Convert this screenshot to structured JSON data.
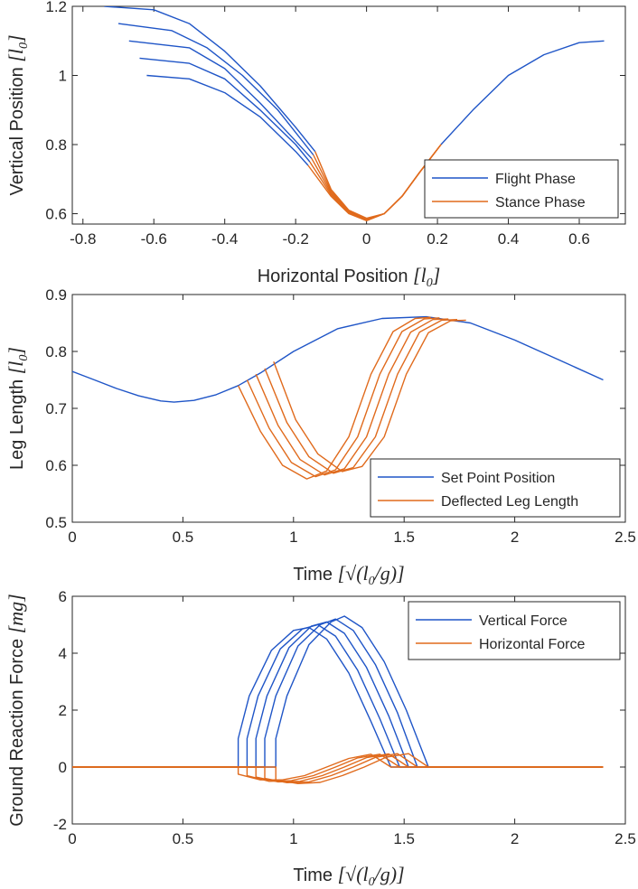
{
  "colors": {
    "blue": "#1f55c7",
    "orange": "#e06a1c",
    "axis": "#262626"
  },
  "chart_data": [
    {
      "type": "line",
      "xlabel": "Horizontal Position",
      "xlabel_unit": "l_0",
      "ylabel": "Vertical Position",
      "ylabel_unit": "l_0",
      "xlim": [
        -0.83,
        0.73
      ],
      "ylim": [
        0.57,
        1.2
      ],
      "xticks": [
        "-0.8",
        "-0.6",
        "-0.4",
        "-0.2",
        "0",
        "0.2",
        "0.4",
        "0.6"
      ],
      "xtick_values": [
        -0.8,
        -0.6,
        -0.4,
        -0.2,
        0,
        0.2,
        0.4,
        0.6
      ],
      "yticks": [
        "0.6",
        "0.8",
        "1",
        "1.2"
      ],
      "ytick_values": [
        0.6,
        0.8,
        1.0,
        1.2
      ],
      "legend": {
        "location": "bottom-right",
        "entries": [
          "Flight Phase",
          "Stance Phase"
        ]
      },
      "series": [
        {
          "name": "Flight Phase",
          "color": "blue",
          "x": [
            0.21,
            0.3,
            0.4,
            0.5,
            0.6,
            0.67
          ],
          "y": [
            0.8,
            0.9,
            1.0,
            1.06,
            1.095,
            1.1
          ]
        },
        {
          "name": "Flight Phase",
          "color": "blue",
          "x": [
            -0.62,
            -0.5,
            -0.4,
            -0.3,
            -0.2,
            -0.165
          ],
          "y": [
            1.0,
            0.99,
            0.95,
            0.88,
            0.78,
            0.74
          ]
        },
        {
          "name": "Flight Phase",
          "color": "blue",
          "x": [
            -0.64,
            -0.5,
            -0.4,
            -0.3,
            -0.2,
            -0.16
          ],
          "y": [
            1.05,
            1.035,
            0.99,
            0.9,
            0.8,
            0.75
          ]
        },
        {
          "name": "Flight Phase",
          "color": "blue",
          "x": [
            -0.67,
            -0.5,
            -0.4,
            -0.3,
            -0.2,
            -0.155
          ],
          "y": [
            1.1,
            1.08,
            1.02,
            0.92,
            0.81,
            0.76
          ]
        },
        {
          "name": "Flight Phase",
          "color": "blue",
          "x": [
            -0.7,
            -0.55,
            -0.45,
            -0.35,
            -0.25,
            -0.15
          ],
          "y": [
            1.15,
            1.13,
            1.08,
            1.0,
            0.9,
            0.77
          ]
        },
        {
          "name": "Flight Phase",
          "color": "blue",
          "x": [
            -0.74,
            -0.6,
            -0.5,
            -0.4,
            -0.3,
            -0.2,
            -0.145
          ],
          "y": [
            1.2,
            1.19,
            1.15,
            1.07,
            0.97,
            0.85,
            0.78
          ]
        },
        {
          "name": "Stance Phase",
          "color": "orange",
          "x": [
            -0.165,
            -0.1,
            -0.05,
            0.0,
            0.05,
            0.1,
            0.15,
            0.21
          ],
          "y": [
            0.74,
            0.65,
            0.6,
            0.58,
            0.6,
            0.65,
            0.72,
            0.8
          ]
        },
        {
          "name": "Stance Phase",
          "color": "orange",
          "x": [
            -0.16,
            -0.1,
            -0.05,
            0.0,
            0.05,
            0.1,
            0.15,
            0.21
          ],
          "y": [
            0.75,
            0.655,
            0.602,
            0.58,
            0.6,
            0.65,
            0.72,
            0.8
          ]
        },
        {
          "name": "Stance Phase",
          "color": "orange",
          "x": [
            -0.155,
            -0.1,
            -0.05,
            0.0,
            0.05,
            0.1,
            0.15,
            0.21
          ],
          "y": [
            0.76,
            0.66,
            0.605,
            0.582,
            0.6,
            0.65,
            0.72,
            0.8
          ]
        },
        {
          "name": "Stance Phase",
          "color": "orange",
          "x": [
            -0.15,
            -0.1,
            -0.05,
            0.0,
            0.05,
            0.1,
            0.15,
            0.21
          ],
          "y": [
            0.77,
            0.665,
            0.608,
            0.585,
            0.6,
            0.65,
            0.72,
            0.8
          ]
        },
        {
          "name": "Stance Phase",
          "color": "orange",
          "x": [
            -0.145,
            -0.1,
            -0.05,
            0.0,
            0.05,
            0.1,
            0.15,
            0.21
          ],
          "y": [
            0.78,
            0.67,
            0.61,
            0.587,
            0.6,
            0.65,
            0.72,
            0.8
          ]
        }
      ]
    },
    {
      "type": "line",
      "xlabel": "Time",
      "xlabel_unit": "sqrt(l_0/g)",
      "ylabel": "Leg Length",
      "ylabel_unit": "l_0",
      "xlim": [
        0,
        2.5
      ],
      "ylim": [
        0.5,
        0.9
      ],
      "xticks": [
        "0",
        "0.5",
        "1",
        "1.5",
        "2",
        "2.5"
      ],
      "xtick_values": [
        0,
        0.5,
        1,
        1.5,
        2,
        2.5
      ],
      "yticks": [
        "0.5",
        "0.6",
        "0.7",
        "0.8",
        "0.9"
      ],
      "ytick_values": [
        0.5,
        0.6,
        0.7,
        0.8,
        0.9
      ],
      "legend": {
        "location": "bottom-right",
        "entries": [
          "Set Point Position",
          "Deflected Leg Length"
        ]
      },
      "series": [
        {
          "name": "Set Point Position",
          "color": "blue",
          "x": [
            0,
            0.1,
            0.2,
            0.3,
            0.4,
            0.46,
            0.55,
            0.65,
            0.75,
            0.85,
            1.0,
            1.2,
            1.4,
            1.6,
            1.8,
            2.0,
            2.2,
            2.4
          ],
          "y": [
            0.765,
            0.75,
            0.735,
            0.722,
            0.713,
            0.711,
            0.714,
            0.724,
            0.74,
            0.762,
            0.8,
            0.84,
            0.858,
            0.861,
            0.85,
            0.82,
            0.785,
            0.75
          ]
        },
        {
          "name": "Deflected Leg Length",
          "color": "orange",
          "x": [
            0.75,
            0.85,
            0.95,
            1.06,
            1.15,
            1.25,
            1.35,
            1.45,
            1.55,
            1.62
          ],
          "y": [
            0.74,
            0.66,
            0.6,
            0.576,
            0.59,
            0.65,
            0.76,
            0.835,
            0.858,
            0.86
          ]
        },
        {
          "name": "Deflected Leg Length",
          "color": "orange",
          "x": [
            0.79,
            0.89,
            0.99,
            1.1,
            1.19,
            1.29,
            1.39,
            1.49,
            1.59,
            1.66
          ],
          "y": [
            0.75,
            0.665,
            0.605,
            0.58,
            0.592,
            0.65,
            0.76,
            0.835,
            0.857,
            0.859
          ]
        },
        {
          "name": "Deflected Leg Length",
          "color": "orange",
          "x": [
            0.83,
            0.93,
            1.03,
            1.14,
            1.23,
            1.33,
            1.43,
            1.53,
            1.63,
            1.7
          ],
          "y": [
            0.76,
            0.67,
            0.61,
            0.583,
            0.594,
            0.65,
            0.76,
            0.834,
            0.856,
            0.857
          ]
        },
        {
          "name": "Deflected Leg Length",
          "color": "orange",
          "x": [
            0.87,
            0.97,
            1.07,
            1.18,
            1.27,
            1.37,
            1.47,
            1.57,
            1.67,
            1.74
          ],
          "y": [
            0.77,
            0.675,
            0.615,
            0.586,
            0.596,
            0.65,
            0.76,
            0.834,
            0.855,
            0.856
          ]
        },
        {
          "name": "Deflected Leg Length",
          "color": "orange",
          "x": [
            0.91,
            1.01,
            1.11,
            1.22,
            1.31,
            1.41,
            1.51,
            1.61,
            1.71,
            1.78
          ],
          "y": [
            0.782,
            0.68,
            0.62,
            0.589,
            0.598,
            0.65,
            0.76,
            0.833,
            0.854,
            0.855
          ]
        }
      ]
    },
    {
      "type": "line",
      "xlabel": "Time",
      "xlabel_unit": "sqrt(l_0/g)",
      "ylabel": "Ground Reaction Force",
      "ylabel_unit": "mg",
      "xlim": [
        0,
        2.5
      ],
      "ylim": [
        -2,
        6
      ],
      "xticks": [
        "0",
        "0.5",
        "1",
        "1.5",
        "2",
        "2.5"
      ],
      "xtick_values": [
        0,
        0.5,
        1,
        1.5,
        2,
        2.5
      ],
      "yticks": [
        "-2",
        "0",
        "2",
        "4",
        "6"
      ],
      "ytick_values": [
        -2,
        0,
        2,
        4,
        6
      ],
      "legend": {
        "location": "top-right",
        "entries": [
          "Vertical Force",
          "Horizontal Force"
        ]
      },
      "series": [
        {
          "name": "Vertical Force",
          "color": "blue",
          "x": [
            0,
            0.75,
            0.75,
            0.8,
            0.9,
            1.0,
            1.07,
            1.15,
            1.25,
            1.35,
            1.44,
            2.4
          ],
          "y": [
            0,
            0,
            1.0,
            2.5,
            4.1,
            4.8,
            4.9,
            4.5,
            3.3,
            1.6,
            0,
            0
          ]
        },
        {
          "name": "Vertical Force",
          "color": "blue",
          "x": [
            0,
            0.79,
            0.79,
            0.84,
            0.94,
            1.04,
            1.11,
            1.19,
            1.29,
            1.39,
            1.48,
            2.4
          ],
          "y": [
            0,
            0,
            1.0,
            2.5,
            4.15,
            4.85,
            5.0,
            4.6,
            3.4,
            1.7,
            0,
            0
          ]
        },
        {
          "name": "Vertical Force",
          "color": "blue",
          "x": [
            0,
            0.83,
            0.83,
            0.88,
            0.98,
            1.08,
            1.15,
            1.23,
            1.33,
            1.43,
            1.52,
            2.4
          ],
          "y": [
            0,
            0,
            1.0,
            2.5,
            4.2,
            4.95,
            5.1,
            4.7,
            3.5,
            1.8,
            0,
            0
          ]
        },
        {
          "name": "Vertical Force",
          "color": "blue",
          "x": [
            0,
            0.87,
            0.87,
            0.92,
            1.02,
            1.12,
            1.19,
            1.27,
            1.37,
            1.47,
            1.56,
            2.4
          ],
          "y": [
            0,
            0,
            1.0,
            2.5,
            4.25,
            5.0,
            5.2,
            4.8,
            3.6,
            1.9,
            0,
            0
          ]
        },
        {
          "name": "Vertical Force",
          "color": "blue",
          "x": [
            0,
            0.92,
            0.92,
            0.97,
            1.07,
            1.17,
            1.23,
            1.31,
            1.41,
            1.51,
            1.61,
            2.4
          ],
          "y": [
            0,
            0,
            1.0,
            2.5,
            4.3,
            5.1,
            5.3,
            4.9,
            3.7,
            2.0,
            0,
            0
          ]
        },
        {
          "name": "Horizontal Force",
          "color": "orange",
          "x": [
            0,
            0.75,
            0.75,
            0.85,
            0.95,
            1.05,
            1.15,
            1.25,
            1.35,
            1.44,
            2.4
          ],
          "y": [
            0,
            0,
            -0.25,
            -0.45,
            -0.45,
            -0.3,
            0.0,
            0.3,
            0.45,
            0,
            0
          ]
        },
        {
          "name": "Horizontal Force",
          "color": "orange",
          "x": [
            0,
            0.79,
            0.79,
            0.89,
            0.99,
            1.09,
            1.19,
            1.29,
            1.39,
            1.48,
            2.4
          ],
          "y": [
            0,
            0,
            -0.3,
            -0.5,
            -0.48,
            -0.3,
            0.0,
            0.32,
            0.45,
            0,
            0
          ]
        },
        {
          "name": "Horizontal Force",
          "color": "orange",
          "x": [
            0,
            0.83,
            0.83,
            0.93,
            1.03,
            1.13,
            1.23,
            1.33,
            1.43,
            1.52,
            2.4
          ],
          "y": [
            0,
            0,
            -0.35,
            -0.52,
            -0.5,
            -0.3,
            0.0,
            0.33,
            0.46,
            0,
            0
          ]
        },
        {
          "name": "Horizontal Force",
          "color": "orange",
          "x": [
            0,
            0.87,
            0.87,
            0.97,
            1.07,
            1.17,
            1.27,
            1.37,
            1.47,
            1.56,
            2.4
          ],
          "y": [
            0,
            0,
            -0.4,
            -0.55,
            -0.52,
            -0.3,
            0.0,
            0.34,
            0.47,
            0,
            0
          ]
        },
        {
          "name": "Horizontal Force",
          "color": "orange",
          "x": [
            0,
            0.92,
            0.92,
            1.02,
            1.12,
            1.22,
            1.32,
            1.42,
            1.52,
            1.61,
            2.4
          ],
          "y": [
            0,
            0,
            -0.45,
            -0.58,
            -0.54,
            -0.3,
            0.0,
            0.35,
            0.47,
            0,
            0
          ]
        }
      ]
    }
  ]
}
